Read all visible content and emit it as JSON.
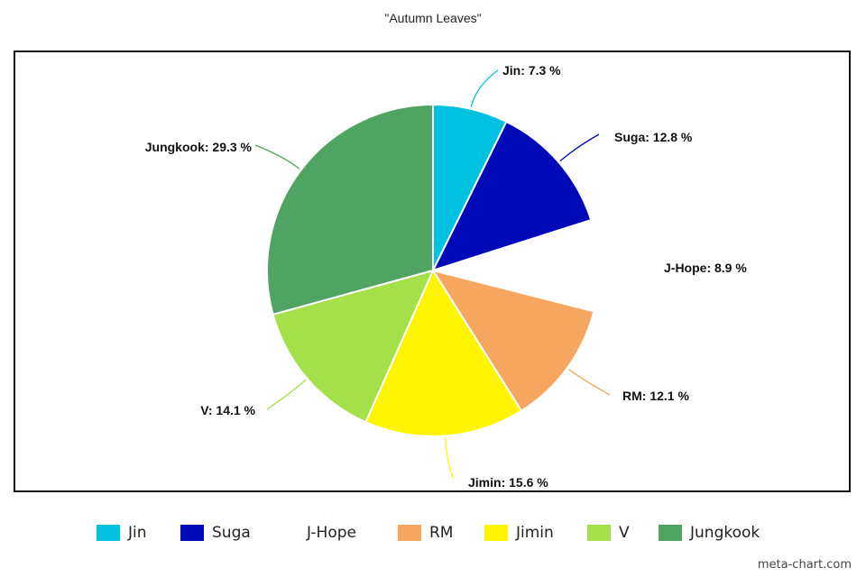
{
  "chart_data": {
    "type": "pie",
    "title": "\"Autumn Leaves\"",
    "slices": [
      {
        "name": "Jin",
        "value": 7.3,
        "label": "Jin: 7.3 %",
        "color": "#00c2e0"
      },
      {
        "name": "Suga",
        "value": 12.8,
        "label": "Suga: 12.8 %",
        "color": "#0009b8"
      },
      {
        "name": "J-Hope",
        "value": 8.9,
        "label": "J-Hope: 8.9 %",
        "color": "#ffffff"
      },
      {
        "name": "RM",
        "value": 12.1,
        "label": "RM: 12.1 %",
        "color": "#f6a65f"
      },
      {
        "name": "Jimin",
        "value": 15.6,
        "label": "Jimin: 15.6 %",
        "color": "#fff500"
      },
      {
        "name": "V",
        "value": 14.1,
        "label": "V: 14.1 %",
        "color": "#a4e04a"
      },
      {
        "name": "Jungkook",
        "value": 29.3,
        "label": "Jungkook: 29.3 %",
        "color": "#4fa461"
      }
    ],
    "legend_position": "bottom"
  },
  "credit": "meta-chart.com"
}
